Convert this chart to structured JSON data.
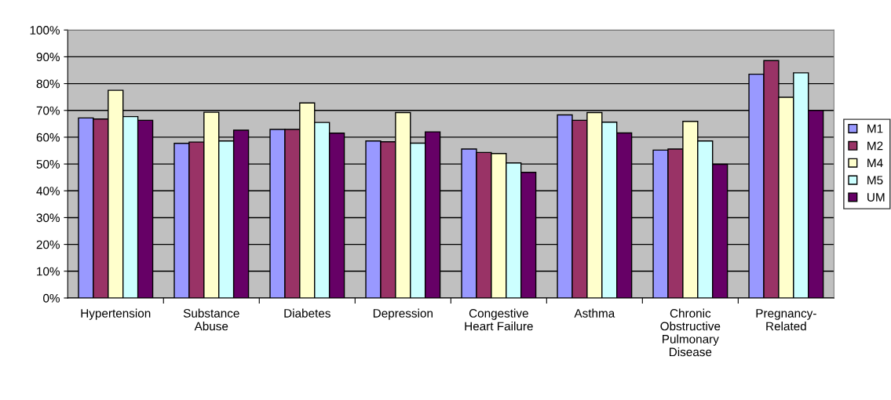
{
  "chart_data": {
    "type": "bar",
    "categories": [
      "Hypertension",
      "Substance\nAbuse",
      "Diabetes",
      "Depression",
      "Congestive\nHeart Failure",
      "Asthma",
      "Chronic\nObstructive\nPulmonary\nDisease",
      "Pregnancy-\nRelated"
    ],
    "series": [
      {
        "name": "M1",
        "color": "#9999ff",
        "values": [
          67.2,
          57.7,
          62.9,
          58.6,
          55.6,
          68.3,
          55.2,
          83.5
        ]
      },
      {
        "name": "M2",
        "color": "#993366",
        "values": [
          66.8,
          58.2,
          62.9,
          58.3,
          54.3,
          66.3,
          55.6,
          88.6
        ]
      },
      {
        "name": "M4",
        "color": "#ffffcc",
        "values": [
          77.5,
          69.3,
          72.8,
          69.2,
          53.9,
          69.2,
          65.9,
          74.9
        ]
      },
      {
        "name": "M5",
        "color": "#ccffff",
        "values": [
          67.7,
          58.6,
          65.5,
          57.8,
          50.4,
          65.6,
          58.6,
          84.0
        ]
      },
      {
        "name": "UM",
        "color": "#660066",
        "values": [
          66.3,
          62.6,
          61.5,
          62.0,
          46.9,
          61.6,
          49.9,
          70.0
        ]
      }
    ],
    "ylim": [
      0,
      100
    ],
    "yticks": [
      {
        "value": 0,
        "label": "0%"
      },
      {
        "value": 10,
        "label": "10%"
      },
      {
        "value": 20,
        "label": "20%"
      },
      {
        "value": 30,
        "label": "30%"
      },
      {
        "value": 40,
        "label": "40%"
      },
      {
        "value": 50,
        "label": "50%"
      },
      {
        "value": 60,
        "label": "60%"
      },
      {
        "value": 70,
        "label": "70%"
      },
      {
        "value": 80,
        "label": "80%"
      },
      {
        "value": 90,
        "label": "90%"
      },
      {
        "value": 100,
        "label": "100%"
      }
    ],
    "grid": "y",
    "legend": "right"
  }
}
